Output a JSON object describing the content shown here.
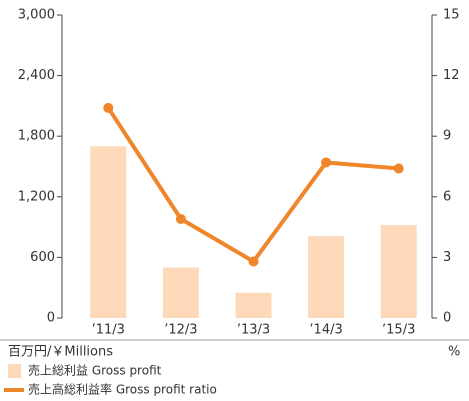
{
  "chart_data": {
    "type": "bar_line",
    "categories": [
      "’11/3",
      "’12/3",
      "’13/3",
      "’14/3",
      "’15/3"
    ],
    "series": [
      {
        "name": "売上総利益 Gross profit",
        "type": "bar",
        "color": "#fdd9b9",
        "values": [
          1700,
          500,
          250,
          810,
          920
        ]
      },
      {
        "name": "売上高総利益率 Gross profit ratio",
        "type": "line",
        "axis": "y2",
        "color": "#f0862a",
        "values": [
          10.4,
          4.9,
          2.8,
          7.7,
          7.4
        ]
      }
    ],
    "ylabel": "百万円/￥Millions",
    "y2label": "%",
    "ylim": [
      0,
      3000
    ],
    "yticks": [
      0,
      600,
      {
        "value": 1200,
        "label": "1,200"
      },
      {
        "value": 1800,
        "label": "1,800"
      },
      {
        "value": 2400,
        "label": "2,400"
      },
      {
        "value": 3000,
        "label": "3,000"
      }
    ],
    "y2lim": [
      0,
      15
    ],
    "y2ticks": [
      0,
      3,
      6,
      9,
      12,
      15
    ]
  }
}
